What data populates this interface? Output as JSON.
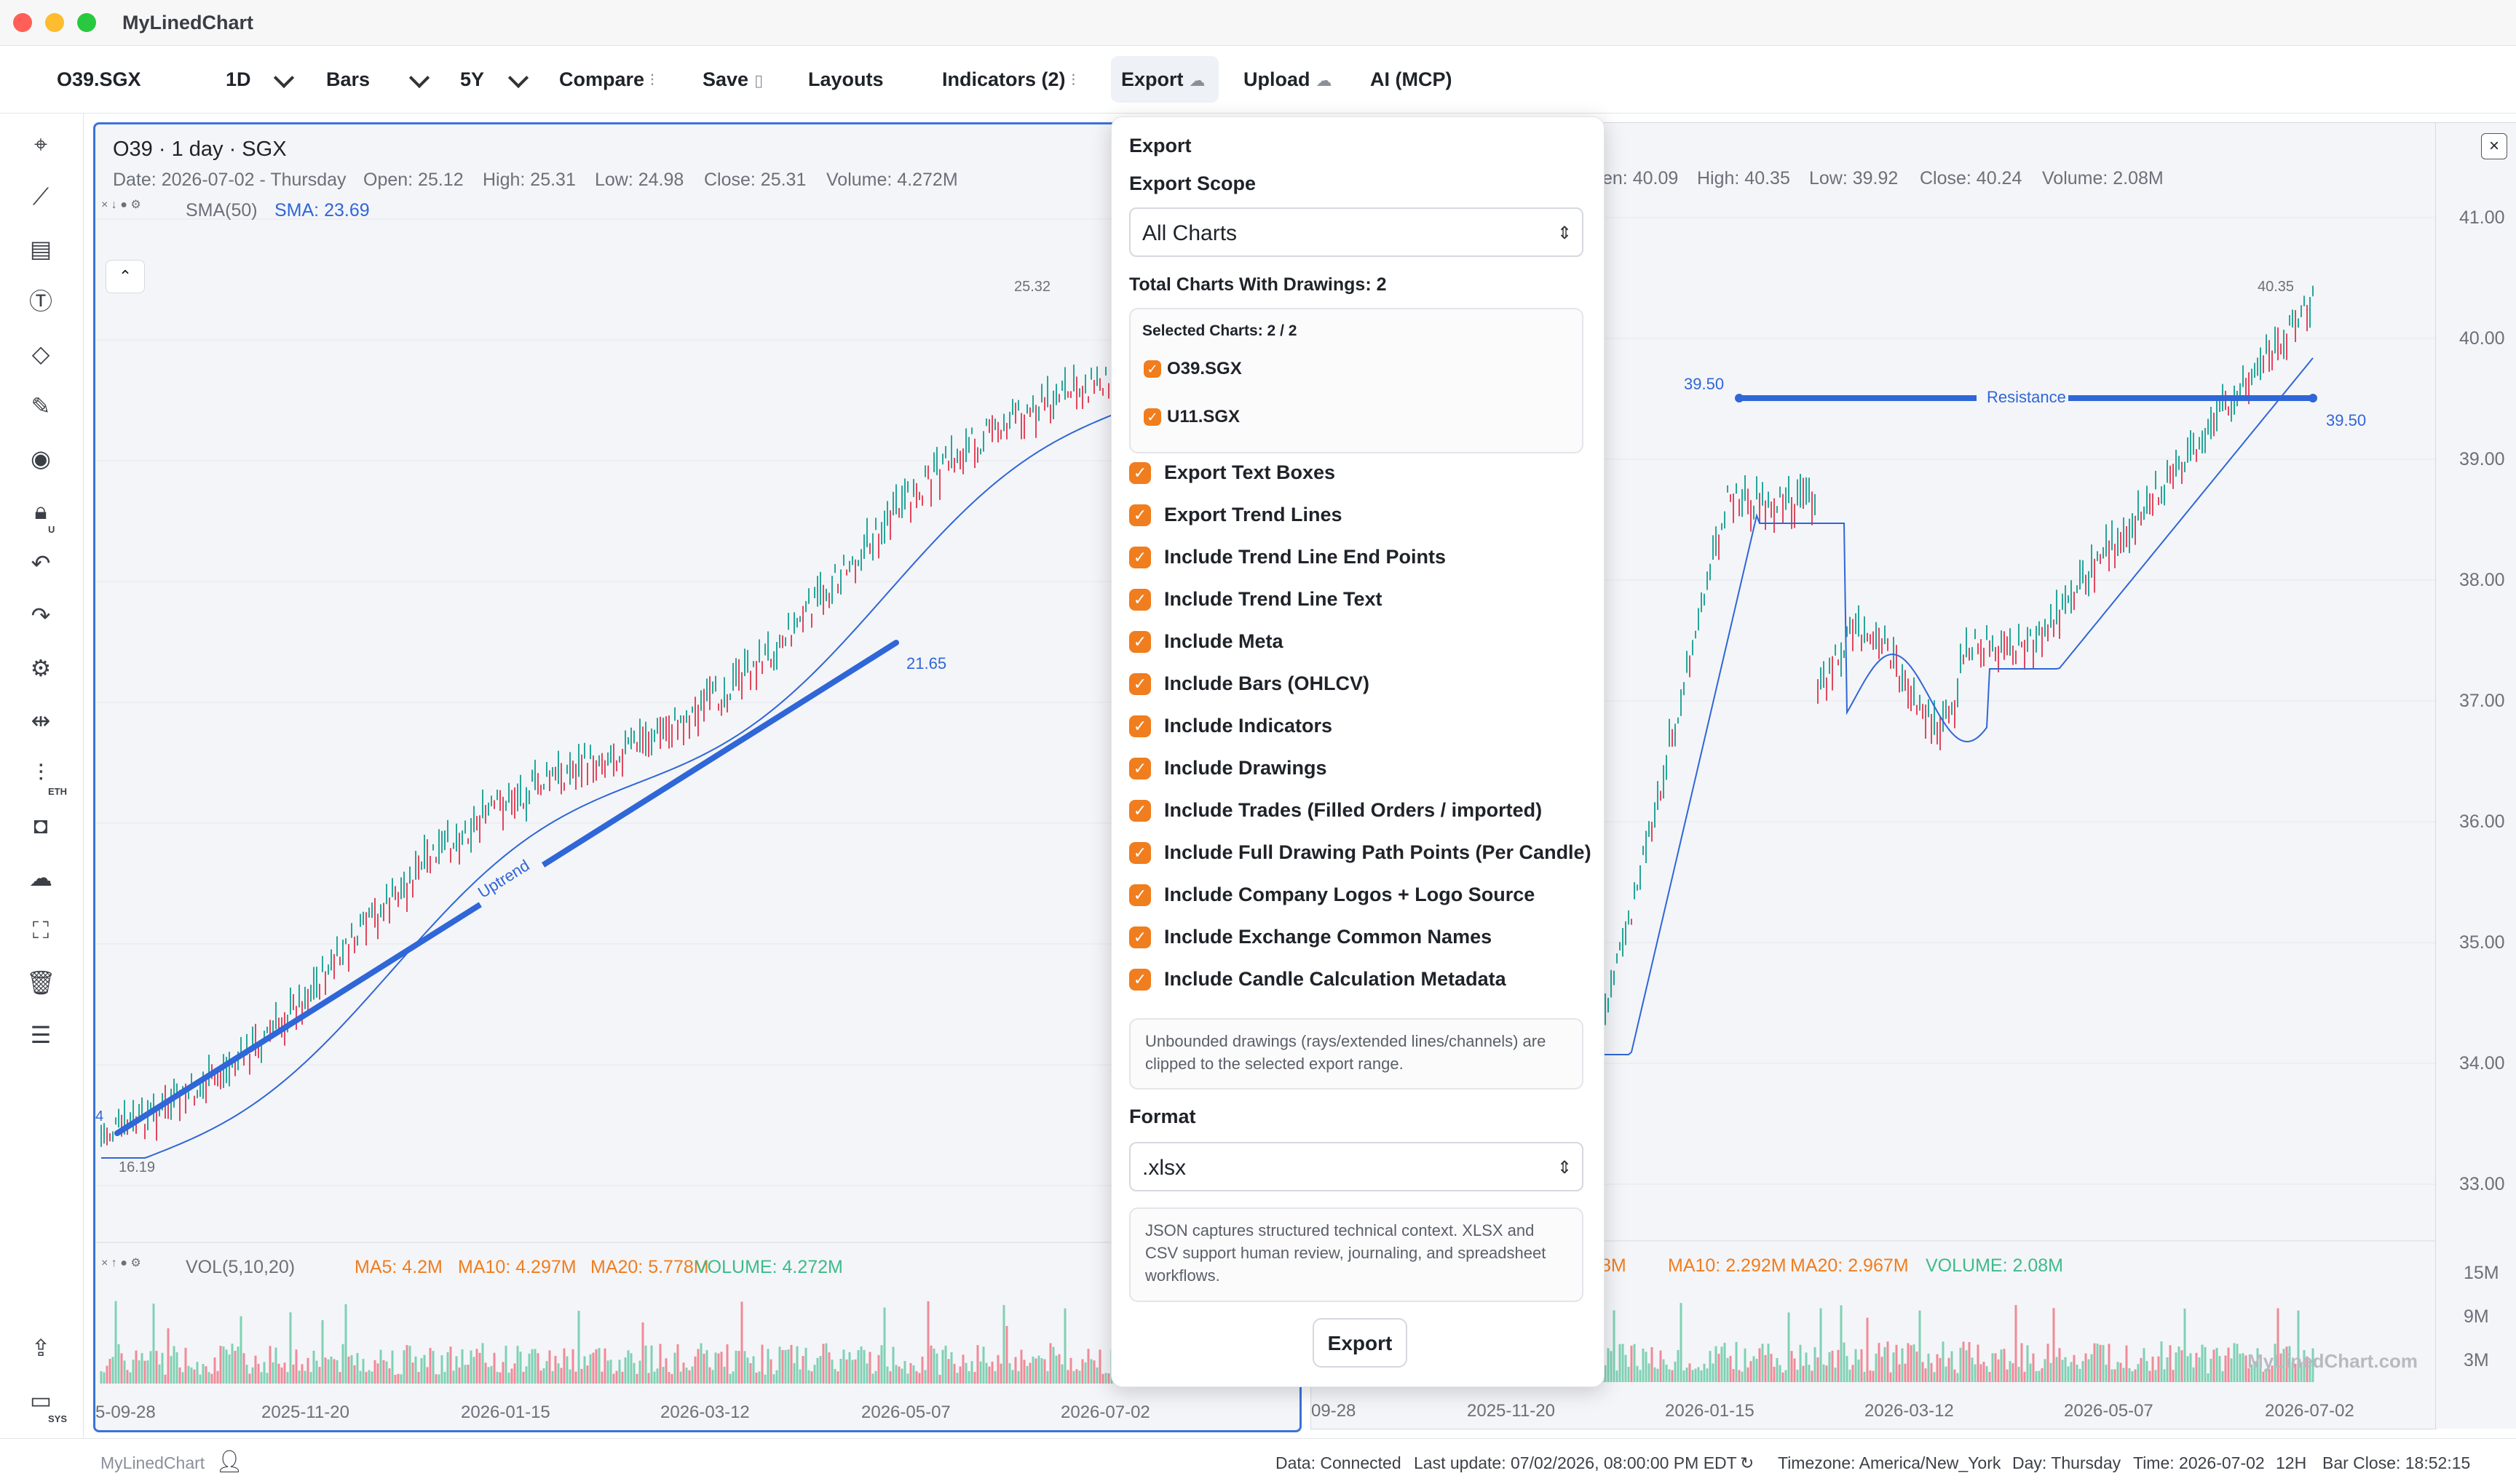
{
  "app": {
    "title": "MyLinedChart"
  },
  "toolbar": {
    "symbol": "O39.SGX",
    "interval": "1D",
    "chart_type": "Bars",
    "range": "5Y",
    "compare": "Compare",
    "save": "Save",
    "layouts": "Layouts",
    "indicators": "Indicators (2)",
    "export": "Export",
    "upload": "Upload",
    "ai": "AI (MCP)"
  },
  "sidebar": {
    "icons": [
      "crosshair-icon",
      "trendline-icon",
      "fib-icon",
      "text-icon",
      "shapes-icon",
      "pencil-icon",
      "eye-icon",
      "lock-icon",
      "undo-icon",
      "redo-icon",
      "settings-icon",
      "compare-split-icon",
      "eth-icon",
      "camera-icon",
      "cloud-icon",
      "fullscreen-icon",
      "trash-icon",
      "sliders-icon",
      "share-icon",
      "sys-icon"
    ],
    "eth_label": "ETH",
    "sys_label": "SYS",
    "lock_sub": "U"
  },
  "left_chart": {
    "title": "O39 · 1 day · SGX",
    "ohlc": {
      "date": "Date: 2026-07-02 - Thursday",
      "open": "Open: 25.12",
      "high": "High: 25.31",
      "low": "Low: 24.98",
      "close": "Close: 25.31",
      "volume": "Volume: 4.272M"
    },
    "indicator_name": "SMA(50)",
    "indicator_value": "SMA: 23.69",
    "high_label": "25.32",
    "low_label": "16.19",
    "trend_end_label": "21.65",
    "trend_text": "Uptrend",
    "trend_start_label": "4",
    "vol": {
      "name": "VOL(5,10,20)",
      "ma5": "MA5: 4.2M",
      "ma10": "MA10: 4.297M",
      "ma20": "MA20: 5.778M",
      "volume": "VOLUME: 4.272M"
    },
    "x_ticks": [
      "5-09-28",
      "2025-11-20",
      "2026-01-15",
      "2026-03-12",
      "2026-05-07",
      "2026-07-02"
    ]
  },
  "right_chart": {
    "ohlc_partial": {
      "open": "en: 40.09",
      "high": "High: 40.35",
      "low": "Low: 39.92",
      "close": "Close: 40.24",
      "volume": "Volume: 2.08M"
    },
    "high_label": "40.35",
    "resistance_text": "Resistance",
    "resistance_left": "39.50",
    "resistance_right": "39.50",
    "y_ticks": [
      "41.00",
      "40.00",
      "39.00",
      "38.00",
      "37.00",
      "36.00",
      "35.00",
      "34.00",
      "33.00"
    ],
    "vol": {
      "ma5_partial": "8M",
      "ma10": "MA10: 2.292M",
      "ma20": "MA20: 2.967M",
      "volume": "VOLUME: 2.08M"
    },
    "vol_ticks": [
      "15M",
      "9M",
      "3M"
    ],
    "x_ticks": [
      "09-28",
      "2025-11-20",
      "2026-01-15",
      "2026-03-12",
      "2026-05-07",
      "2026-07-02"
    ],
    "watermark": "MyLinedChart.com"
  },
  "export_panel": {
    "heading": "Export",
    "scope_label": "Export Scope",
    "scope_value": "All Charts",
    "total_label": "Total Charts With Drawings: 2",
    "selected_label": "Selected Charts: 2 / 2",
    "charts": [
      "O39.SGX",
      "U11.SGX"
    ],
    "options": [
      "Export Text Boxes",
      "Export Trend Lines",
      "Include Trend Line End Points",
      "Include Trend Line Text",
      "Include Meta",
      "Include Bars (OHLCV)",
      "Include Indicators",
      "Include Drawings",
      "Include Trades (Filled Orders / imported)",
      "Include Full Drawing Path Points (Per Candle)",
      "Include Company Logos + Logo Source",
      "Include Exchange Common Names",
      "Include Candle Calculation Metadata"
    ],
    "clip_note": "Unbounded drawings (rays/extended lines/channels) are clipped to the selected export range.",
    "format_label": "Format",
    "format_value": ".xlsx",
    "format_note": "JSON captures structured technical context. XLSX and CSV support human review, journaling, and spreadsheet workflows.",
    "action": "Export"
  },
  "status": {
    "brand": "MyLinedChart",
    "data": "Data: Connected",
    "last_update": "Last update: 07/02/2026, 08:00:00 PM EDT",
    "timezone": "Timezone: America/New_York",
    "day": "Day: Thursday",
    "time": "Time: 2026-07-02",
    "tf": "12H",
    "bar_close": "Bar Close: 18:52:15"
  },
  "colors": {
    "accent": "#2f66d8",
    "up": "#26a69a",
    "down": "#e0475e",
    "checkbox": "#f07d1e"
  }
}
